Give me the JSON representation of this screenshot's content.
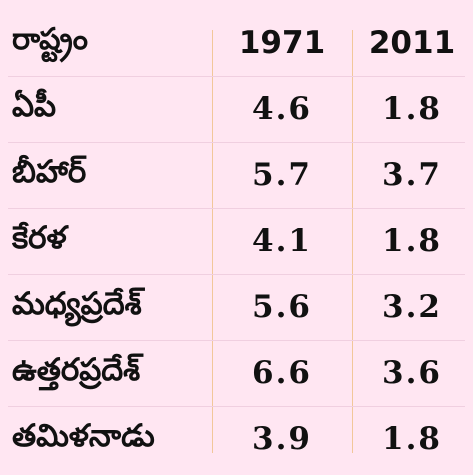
{
  "table": {
    "columns": [
      "రాష్ట్రం",
      "1971",
      "2011"
    ],
    "rows": [
      {
        "state": "ఏపీ",
        "y1971": "4.6",
        "y2011": "1.8"
      },
      {
        "state": "బీహార్",
        "y1971": "5.7",
        "y2011": "3.7"
      },
      {
        "state": "కేరళ",
        "y1971": "4.1",
        "y2011": "1.8"
      },
      {
        "state": "మధ్యప్రదేశ్",
        "y1971": "5.6",
        "y2011": "3.2"
      },
      {
        "state": "ఉత్తరప్రదేశ్",
        "y1971": "6.6",
        "y2011": "3.6"
      },
      {
        "state": "తమిళనాడు",
        "y1971": "3.9",
        "y2011": "1.8"
      }
    ]
  },
  "colors": {
    "background": "#ffe6f2",
    "divider": "#f2c79a",
    "text": "#111111"
  }
}
